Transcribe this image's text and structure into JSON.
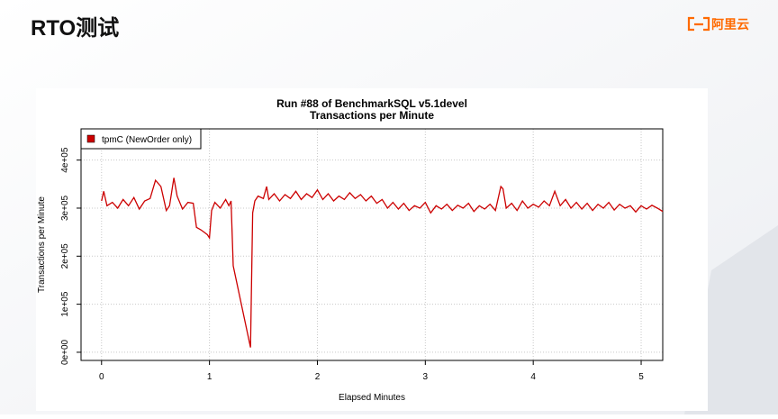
{
  "header": {
    "title": "RTO测试",
    "logo": "阿里云"
  },
  "chart_data": {
    "type": "line",
    "title": "Run #88 of BenchmarkSQL v5.1devel",
    "subtitle": "Transactions per Minute",
    "x_label": "Elapsed Minutes",
    "y_label": "Transactions per Minute",
    "x": [
      0,
      0.02,
      0.05,
      0.1,
      0.15,
      0.2,
      0.25,
      0.3,
      0.35,
      0.4,
      0.45,
      0.5,
      0.55,
      0.6,
      0.63,
      0.67,
      0.7,
      0.75,
      0.8,
      0.85,
      0.88,
      0.92,
      0.95,
      0.98,
      1.0,
      1.02,
      1.05,
      1.1,
      1.15,
      1.18,
      1.2,
      1.22,
      1.38,
      1.4,
      1.42,
      1.45,
      1.5,
      1.53,
      1.55,
      1.6,
      1.65,
      1.7,
      1.75,
      1.8,
      1.85,
      1.9,
      1.95,
      2.0,
      2.05,
      2.1,
      2.15,
      2.2,
      2.25,
      2.3,
      2.35,
      2.4,
      2.45,
      2.5,
      2.55,
      2.6,
      2.65,
      2.7,
      2.75,
      2.8,
      2.85,
      2.9,
      2.95,
      3.0,
      3.05,
      3.1,
      3.15,
      3.2,
      3.25,
      3.3,
      3.35,
      3.4,
      3.45,
      3.5,
      3.55,
      3.6,
      3.65,
      3.7,
      3.72,
      3.75,
      3.8,
      3.85,
      3.9,
      3.95,
      4.0,
      4.05,
      4.1,
      4.15,
      4.2,
      4.25,
      4.3,
      4.35,
      4.4,
      4.45,
      4.5,
      4.55,
      4.6,
      4.65,
      4.7,
      4.75,
      4.8,
      4.85,
      4.9,
      4.95,
      5.0,
      5.05,
      5.1,
      5.15,
      5.2
    ],
    "series": [
      {
        "name": "tpmC (NewOrder only)",
        "color": "#cc0000",
        "values": [
          315000,
          335000,
          305000,
          312000,
          300000,
          318000,
          305000,
          322000,
          298000,
          315000,
          320000,
          358000,
          345000,
          295000,
          305000,
          363000,
          325000,
          298000,
          312000,
          310000,
          260000,
          255000,
          250000,
          245000,
          238000,
          295000,
          312000,
          300000,
          318000,
          305000,
          315000,
          180000,
          10000,
          290000,
          315000,
          325000,
          320000,
          345000,
          318000,
          330000,
          315000,
          328000,
          320000,
          335000,
          318000,
          330000,
          322000,
          338000,
          318000,
          330000,
          315000,
          325000,
          318000,
          332000,
          320000,
          328000,
          315000,
          325000,
          310000,
          318000,
          300000,
          312000,
          298000,
          310000,
          295000,
          305000,
          300000,
          312000,
          290000,
          305000,
          298000,
          308000,
          295000,
          306000,
          300000,
          310000,
          293000,
          305000,
          298000,
          308000,
          295000,
          345000,
          340000,
          300000,
          310000,
          295000,
          315000,
          300000,
          308000,
          302000,
          315000,
          305000,
          335000,
          305000,
          318000,
          300000,
          312000,
          298000,
          310000,
          295000,
          308000,
          300000,
          312000,
          296000,
          308000,
          300000,
          305000,
          292000,
          305000,
          298000,
          306000,
          300000,
          293000
        ]
      }
    ],
    "xlim": [
      -0.19,
      5.2
    ],
    "ylim": [
      -17000,
      465000
    ],
    "xticks": [
      0,
      1,
      2,
      3,
      4,
      5
    ],
    "yticks": [
      {
        "value": 0,
        "label": "0e+00"
      },
      {
        "value": 100000,
        "label": "1e+05"
      },
      {
        "value": 200000,
        "label": "2e+05"
      },
      {
        "value": 300000,
        "label": "3e+05"
      },
      {
        "value": 400000,
        "label": "4e+05"
      }
    ],
    "grid": true,
    "legend": "top-left"
  }
}
